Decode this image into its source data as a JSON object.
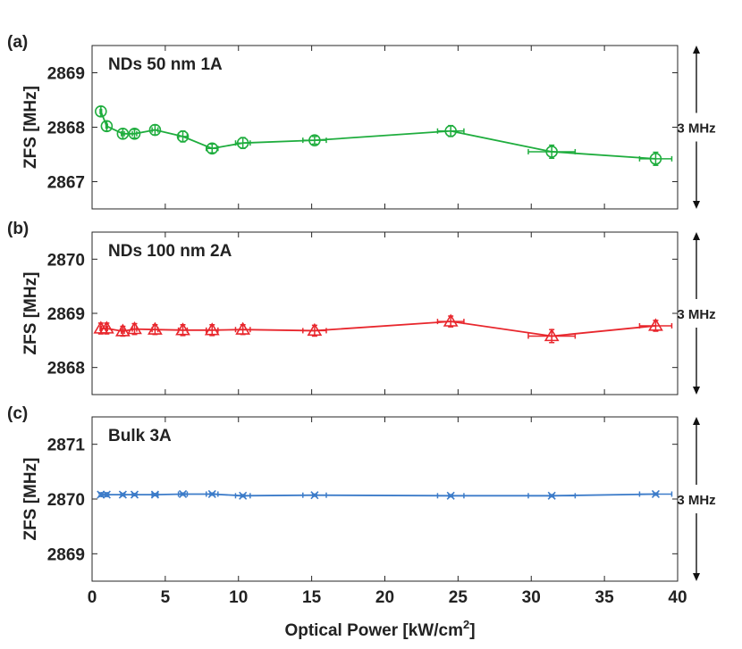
{
  "chart_data": [
    {
      "type": "line",
      "panel_label": "(a)",
      "title": "NDs 50 nm 1A",
      "ylabel": "ZFS [MHz]",
      "ylim": [
        2866.5,
        2869.5
      ],
      "yticks": [
        "2867",
        "2868",
        "2869"
      ],
      "ytick_values": [
        2867,
        2868,
        2869
      ],
      "marker": "circle-plus",
      "color": "#1fad3e",
      "scale_label": "3 MHz",
      "x": [
        0.6,
        1.0,
        2.1,
        2.9,
        4.3,
        6.2,
        8.2,
        10.3,
        15.2,
        24.5,
        31.4,
        38.5
      ],
      "y": [
        2868.29,
        2868.02,
        2867.88,
        2867.88,
        2867.95,
        2867.83,
        2867.61,
        2867.71,
        2867.76,
        2867.93,
        2867.55,
        2867.42
      ],
      "yerr": [
        0.09,
        0.09,
        0.09,
        0.08,
        0.09,
        0.1,
        0.08,
        0.1,
        0.07,
        0.1,
        0.12,
        0.12
      ],
      "xerr": [
        0.05,
        0.05,
        0.1,
        0.15,
        0.2,
        0.3,
        0.4,
        0.5,
        0.8,
        0.9,
        1.6,
        1.1
      ]
    },
    {
      "type": "line",
      "panel_label": "(b)",
      "title": "NDs 100 nm 2A",
      "ylabel": "ZFS [MHz]",
      "ylim": [
        2867.5,
        2870.5
      ],
      "yticks": [
        "2868",
        "2869",
        "2870"
      ],
      "ytick_values": [
        2868,
        2869,
        2870
      ],
      "marker": "triangle",
      "color": "#e8272d",
      "scale_label": "3 MHz",
      "x": [
        0.6,
        1.0,
        2.1,
        2.9,
        4.3,
        6.2,
        8.2,
        10.3,
        15.2,
        24.5,
        31.4,
        38.5
      ],
      "y": [
        2868.72,
        2868.72,
        2868.67,
        2868.71,
        2868.7,
        2868.69,
        2868.69,
        2868.7,
        2868.68,
        2868.85,
        2868.58,
        2868.77
      ],
      "yerr": [
        0.1,
        0.1,
        0.09,
        0.1,
        0.09,
        0.1,
        0.1,
        0.09,
        0.1,
        0.1,
        0.12,
        0.1
      ],
      "xerr": [
        0.05,
        0.05,
        0.1,
        0.15,
        0.2,
        0.3,
        0.4,
        0.5,
        0.8,
        0.9,
        1.6,
        1.1
      ]
    },
    {
      "type": "line",
      "panel_label": "(c)",
      "title": "Bulk 3A",
      "ylabel": "ZFS [MHz]",
      "ylim": [
        2868.5,
        2871.5
      ],
      "yticks": [
        "2869",
        "2870",
        "2871"
      ],
      "ytick_values": [
        2869,
        2870,
        2871
      ],
      "marker": "x",
      "color": "#3d7cc9",
      "scale_label": "3 MHz",
      "x": [
        0.6,
        1.0,
        2.1,
        2.9,
        4.3,
        6.2,
        8.2,
        10.3,
        15.2,
        24.5,
        31.4,
        38.5
      ],
      "y": [
        2870.08,
        2870.08,
        2870.08,
        2870.08,
        2870.08,
        2870.09,
        2870.09,
        2870.06,
        2870.07,
        2870.06,
        2870.06,
        2870.09
      ],
      "yerr": [
        0.02,
        0.02,
        0.02,
        0.02,
        0.02,
        0.02,
        0.02,
        0.02,
        0.02,
        0.02,
        0.02,
        0.02
      ],
      "xerr": [
        0.05,
        0.05,
        0.1,
        0.15,
        0.2,
        0.3,
        0.4,
        0.5,
        0.8,
        0.9,
        1.6,
        1.1
      ]
    }
  ],
  "x_axis": {
    "label": "Optical Power  [kW/cm",
    "label_superscript": "2",
    "label_suffix": "]",
    "xlim": [
      0,
      40
    ],
    "ticks": [
      "0",
      "5",
      "10",
      "15",
      "20",
      "25",
      "30",
      "35",
      "40"
    ],
    "tick_values": [
      0,
      5,
      10,
      15,
      20,
      25,
      30,
      35,
      40
    ]
  }
}
